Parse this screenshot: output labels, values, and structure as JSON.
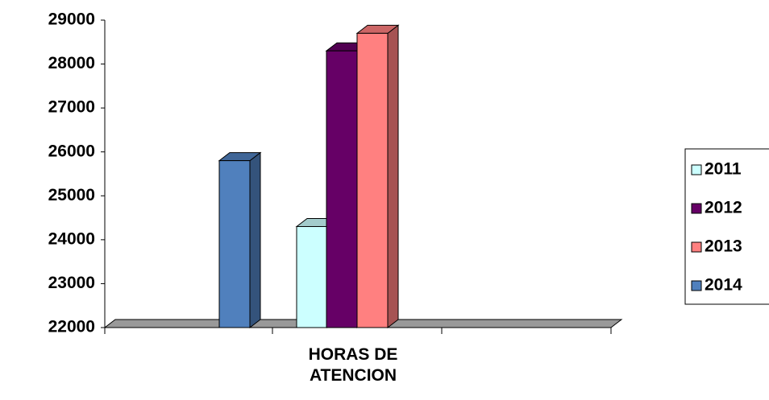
{
  "chart_data": {
    "type": "bar3d",
    "categories": [
      "HORAS DE ATENCION"
    ],
    "series": [
      {
        "name": "2011",
        "color": "#ccffff",
        "values": [
          24300
        ]
      },
      {
        "name": "2012",
        "color": "#660066",
        "values": [
          28300
        ]
      },
      {
        "name": "2013",
        "color": "#ff8080",
        "values": [
          28700
        ]
      },
      {
        "name": "2014",
        "color": "#5080bd",
        "values": [
          25800
        ]
      }
    ],
    "ylim": [
      22000,
      29000
    ],
    "yticks": [
      22000,
      23000,
      24000,
      25000,
      26000,
      27000,
      28000,
      29000
    ],
    "legend": "right"
  }
}
